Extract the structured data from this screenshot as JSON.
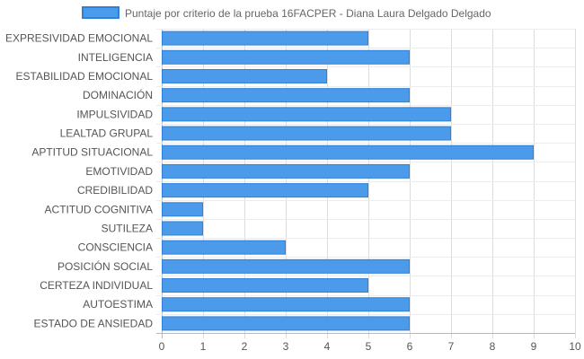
{
  "chart_data": {
    "type": "bar",
    "orientation": "horizontal",
    "title": "",
    "xlabel": "",
    "ylabel": "",
    "xlim": [
      0,
      10
    ],
    "x_ticks": [
      "0",
      "1",
      "2",
      "3",
      "4",
      "5",
      "6",
      "7",
      "8",
      "9",
      "10"
    ],
    "grid": true,
    "legend_position": "top",
    "categories": [
      "EXPRESIVIDAD EMOCIONAL",
      "INTELIGENCIA",
      "ESTABILIDAD EMOCIONAL",
      "DOMINACIÓN",
      "IMPULSIVIDAD",
      "LEALTAD GRUPAL",
      "APTITUD SITUACIONAL",
      "EMOTIVIDAD",
      "CREDIBILIDAD",
      "ACTITUD COGNITIVA",
      "SUTILEZA",
      "CONSCIENCIA",
      "POSICIÓN SOCIAL",
      "CERTEZA INDIVIDUAL",
      "AUTOESTIMA",
      "ESTADO DE ANSIEDAD"
    ],
    "series": [
      {
        "name": "Puntaje por criterio de la prueba 16FACPER - Diana Laura Delgado Delgado",
        "values": [
          5,
          6,
          4,
          6,
          7,
          7,
          9,
          6,
          5,
          1,
          1,
          3,
          6,
          5,
          6,
          6
        ],
        "color": "#4c9beb",
        "border_color": "#2f80d8"
      }
    ]
  }
}
